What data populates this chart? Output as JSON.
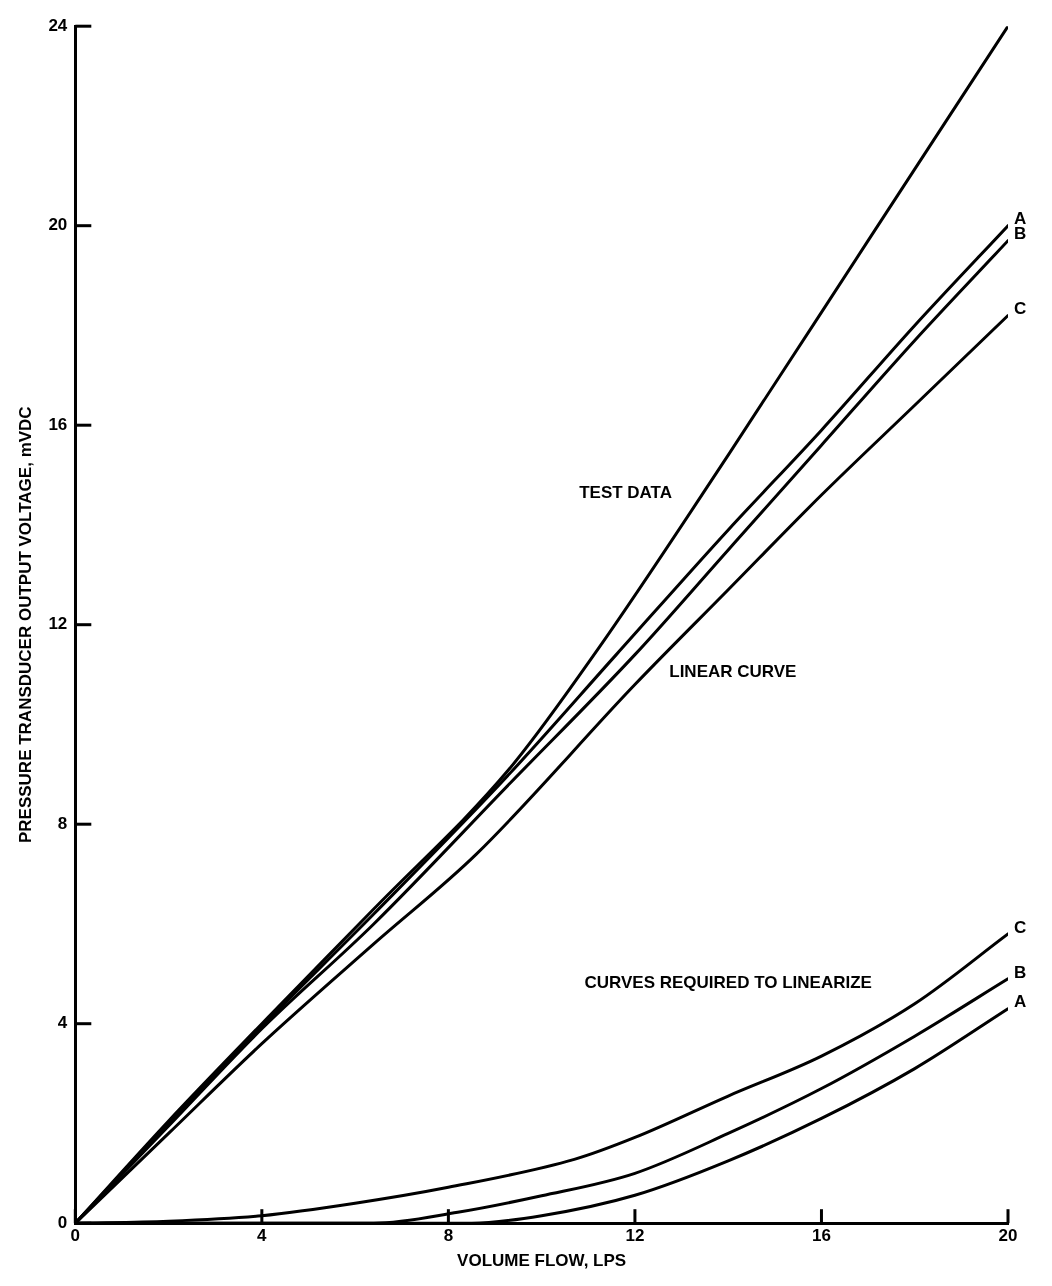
{
  "chart_data": {
    "type": "line",
    "xlabel": "VOLUME FLOW, LPS",
    "ylabel": "PRESSURE TRANSDUCER OUTPUT VOLTAGE, mVDC",
    "xlim": [
      0,
      20
    ],
    "xticks": [
      0,
      4,
      8,
      12,
      16,
      20
    ],
    "ylim": [
      0,
      24
    ],
    "yticks": [
      0,
      4,
      8,
      12,
      16,
      20,
      24
    ],
    "grid": false,
    "legend": false,
    "marker": "none",
    "line_style": "solid",
    "annotations": [
      "TEST DATA",
      "LINEAR CURVE",
      "CURVES REQUIRED TO LINEARIZE"
    ],
    "series": [
      {
        "color": "#000000",
        "x": [
          0,
          2,
          4,
          6.4,
          9.3,
          11.2,
          14,
          17,
          20
        ],
        "values": [
          0,
          2.05,
          4,
          6.3,
          9.1,
          11.5,
          15.4,
          19.7,
          24
        ]
      },
      {
        "name": "A",
        "color": "#000000",
        "x": [
          0,
          2,
          4,
          6.4,
          9.3,
          11.6,
          14,
          16,
          18,
          20
        ],
        "values": [
          0,
          2,
          3.95,
          6.2,
          9,
          11.4,
          13.9,
          15.9,
          18,
          20
        ]
      },
      {
        "name": "B",
        "color": "#000000",
        "x": [
          0,
          2,
          4,
          6.4,
          9.3,
          12,
          14,
          16,
          18,
          20
        ],
        "values": [
          0,
          1.95,
          3.9,
          6,
          8.8,
          11.4,
          13.5,
          15.6,
          17.7,
          19.7
        ]
      },
      {
        "name": "C",
        "color": "#000000",
        "x": [
          0,
          2,
          4,
          6.4,
          8.6,
          12,
          14,
          16,
          18,
          20
        ],
        "values": [
          0,
          1.8,
          3.6,
          5.6,
          7.4,
          10.8,
          12.7,
          14.6,
          16.4,
          18.2
        ]
      },
      {
        "name": "C",
        "color": "#000000",
        "x": [
          0,
          2,
          4,
          6,
          8,
          10.7,
          12,
          14,
          16,
          18,
          20
        ],
        "values": [
          0,
          0.04,
          0.15,
          0.4,
          0.72,
          1.28,
          1.72,
          2.55,
          3.35,
          4.4,
          5.8
        ]
      },
      {
        "name": "B",
        "color": "#000000",
        "x": [
          0,
          6.4,
          8.2,
          10,
          12,
          14,
          16,
          18,
          20
        ],
        "values": [
          0,
          0,
          0.22,
          0.55,
          1,
          1.8,
          2.7,
          3.75,
          4.9
        ]
      },
      {
        "name": "A",
        "color": "#000000",
        "x": [
          0,
          8.5,
          10,
          12,
          14,
          16,
          18,
          20
        ],
        "values": [
          0,
          0,
          0.15,
          0.56,
          1.25,
          2.1,
          3.1,
          4.3
        ]
      }
    ]
  }
}
